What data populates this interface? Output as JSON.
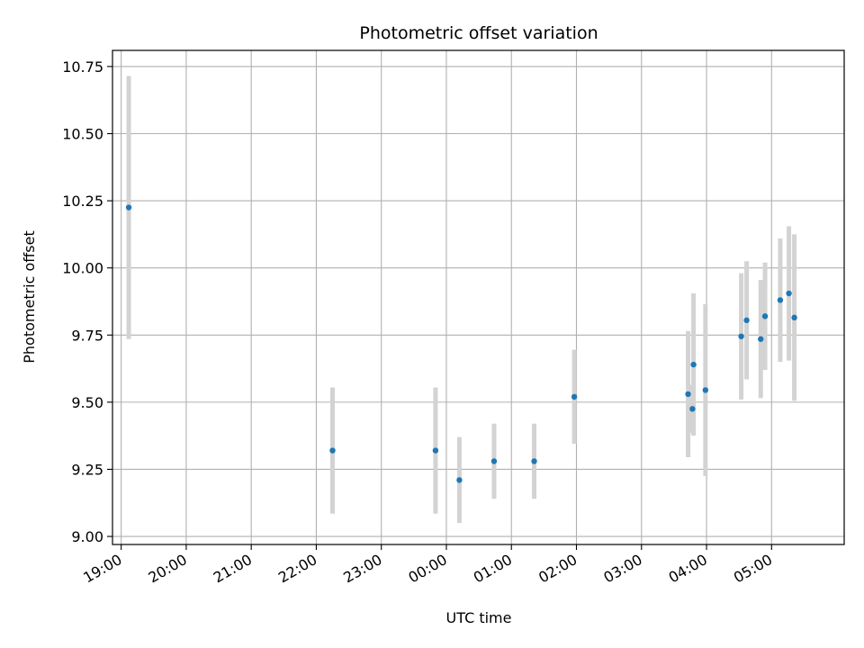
{
  "chart_data": {
    "type": "scatter",
    "title": "Photometric offset variation",
    "xlabel": "UTC time",
    "ylabel": "Photometric offset",
    "x_axis_type": "time",
    "x_range": [
      "18:52",
      "06:07"
    ],
    "ylim": [
      8.97,
      10.81
    ],
    "grid": true,
    "x_ticks": [
      "19:00",
      "20:00",
      "21:00",
      "22:00",
      "23:00",
      "00:00",
      "01:00",
      "02:00",
      "03:00",
      "04:00",
      "05:00"
    ],
    "y_ticks": [
      "9.00",
      "9.25",
      "9.50",
      "9.75",
      "10.00",
      "10.25",
      "10.50",
      "10.75"
    ],
    "y_tick_values": [
      9.0,
      9.25,
      9.5,
      9.75,
      10.0,
      10.25,
      10.5,
      10.75
    ],
    "series": [
      {
        "marker_color": "#1f77b4",
        "errorbar_color": "#d3d3d3",
        "points": [
          {
            "t": "19:07",
            "y": 10.225,
            "err": 0.49
          },
          {
            "t": "22:15",
            "y": 9.32,
            "err": 0.235
          },
          {
            "t": "23:50",
            "y": 9.32,
            "err": 0.235
          },
          {
            "t": "00:12",
            "y": 9.21,
            "err": 0.16
          },
          {
            "t": "00:44",
            "y": 9.28,
            "err": 0.14
          },
          {
            "t": "01:21",
            "y": 9.28,
            "err": 0.14
          },
          {
            "t": "01:58",
            "y": 9.52,
            "err": 0.175
          },
          {
            "t": "03:43",
            "y": 9.53,
            "err": 0.235
          },
          {
            "t": "03:47",
            "y": 9.475,
            "err": 0.09
          },
          {
            "t": "03:48",
            "y": 9.64,
            "err": 0.265
          },
          {
            "t": "03:59",
            "y": 9.545,
            "err": 0.32
          },
          {
            "t": "04:32",
            "y": 9.745,
            "err": 0.235
          },
          {
            "t": "04:37",
            "y": 9.805,
            "err": 0.22
          },
          {
            "t": "04:50",
            "y": 9.735,
            "err": 0.22
          },
          {
            "t": "04:54",
            "y": 9.82,
            "err": 0.2
          },
          {
            "t": "05:08",
            "y": 9.88,
            "err": 0.23
          },
          {
            "t": "05:16",
            "y": 9.905,
            "err": 0.25
          },
          {
            "t": "05:21",
            "y": 9.815,
            "err": 0.31
          }
        ]
      }
    ]
  }
}
